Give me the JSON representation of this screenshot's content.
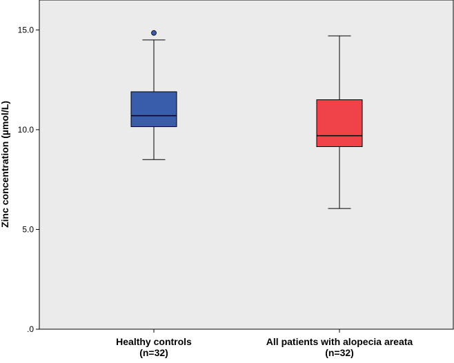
{
  "chart_data": {
    "type": "boxplot",
    "title": "",
    "xlabel": "",
    "ylabel": "Zinc concentration  (µmol/L)",
    "ylim": [
      0,
      16.5
    ],
    "yticks": [
      {
        "value": 0,
        "label": ".0"
      },
      {
        "value": 5,
        "label": "5.0"
      },
      {
        "value": 10,
        "label": "10.0"
      },
      {
        "value": 15,
        "label": "15.0"
      }
    ],
    "grid": false,
    "categories": [
      {
        "label": "Healthy controls",
        "sublabel": "(n=32)"
      },
      {
        "label": "All patients with alopecia areata",
        "sublabel": "(n=32)"
      }
    ],
    "boxes": [
      {
        "category": "Healthy controls",
        "min": 8.5,
        "q1": 10.15,
        "median": 10.7,
        "q3": 11.9,
        "max": 14.5,
        "outliers": [
          14.85
        ],
        "color": "#3a5dab"
      },
      {
        "category": "All patients with alopecia areata",
        "min": 6.05,
        "q1": 9.15,
        "median": 9.7,
        "q3": 11.5,
        "max": 14.7,
        "outliers": [],
        "color": "#ef4249"
      }
    ],
    "colors": {
      "plot_background": "#ebebeb",
      "axis": "#000000",
      "healthy": "#3a5dab",
      "patients": "#ef4249"
    }
  }
}
